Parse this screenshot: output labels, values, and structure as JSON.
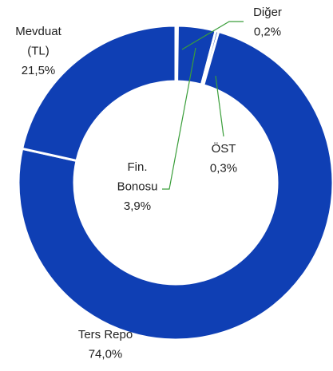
{
  "chart_data": {
    "type": "donut",
    "categories": [
      [
        "Diğer"
      ],
      [
        "Fin.",
        "Bonosu"
      ],
      [
        "ÖST"
      ],
      [
        "Ters Repo"
      ],
      [
        "Mevduat",
        "(TL)"
      ]
    ],
    "values": [
      0.2,
      3.9,
      0.3,
      74.0,
      21.5
    ],
    "value_labels": [
      "0,2%",
      "3,9%",
      "0,3%",
      "74,0%",
      "21,5%"
    ],
    "color": "#0f3fb4",
    "leader_color": "#3a9e3a"
  }
}
